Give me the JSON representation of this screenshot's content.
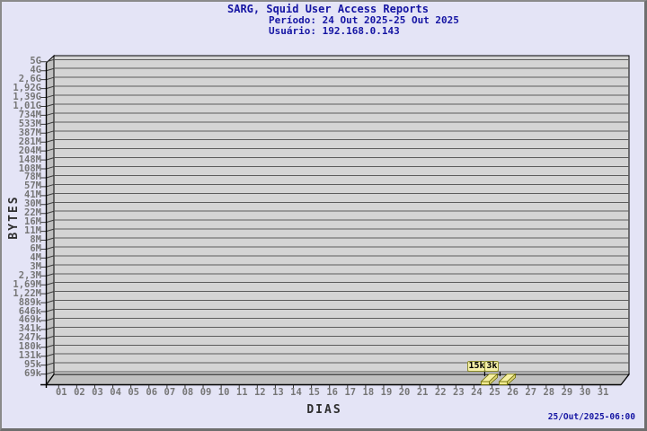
{
  "header": {
    "title": "SARG, Squid User Access Reports",
    "period": "Período: 24 Out 2025-25 Out 2025",
    "user": "Usuário: 192.168.0.143"
  },
  "footer": {
    "timestamp": "25/Out/2025-06:00"
  },
  "chart_data": {
    "type": "bar",
    "title": "SARG, Squid User Access Reports",
    "subtitle": "Período: 24 Out 2025-25 Out 2025",
    "user_line": "Usuário: 192.168.0.143",
    "xlabel": "DIAS",
    "ylabel": "BYTES",
    "y_scale": "log",
    "y_tick_labels": [
      "5G",
      "4G",
      "2,6G",
      "1,92G",
      "1,39G",
      "1,01G",
      "734M",
      "533M",
      "387M",
      "281M",
      "204M",
      "148M",
      "108M",
      "78M",
      "57M",
      "41M",
      "30M",
      "22M",
      "16M",
      "11M",
      "8M",
      "6M",
      "4M",
      "3M",
      "2,3M",
      "1,69M",
      "1,22M",
      "889k",
      "646k",
      "469k",
      "341k",
      "247k",
      "180k",
      "131k",
      "95k",
      "69k"
    ],
    "y_axis_min_label": "69k",
    "y_axis_max_label": "5G",
    "categories": [
      "01",
      "02",
      "03",
      "04",
      "05",
      "06",
      "07",
      "08",
      "09",
      "10",
      "11",
      "12",
      "13",
      "14",
      "15",
      "16",
      "17",
      "18",
      "19",
      "20",
      "21",
      "22",
      "23",
      "24",
      "25",
      "26",
      "27",
      "28",
      "29",
      "30",
      "31"
    ],
    "values": [
      0,
      0,
      0,
      0,
      0,
      0,
      0,
      0,
      0,
      0,
      0,
      0,
      0,
      0,
      0,
      0,
      0,
      0,
      0,
      0,
      0,
      0,
      0,
      15000,
      3000,
      0,
      0,
      0,
      0,
      0,
      0
    ],
    "bar_labels": [
      {
        "category": "24",
        "text": "15k"
      },
      {
        "category": "25",
        "text": "3k"
      }
    ],
    "grid": "horizontal",
    "legend": "none",
    "style": "3d-bar"
  },
  "colors": {
    "background": "#e4e4f6",
    "title_text": "#1515a3",
    "axis_title_text": "#2e2e2e",
    "tick_text": "#767676",
    "plot_face": "#d4d4d4",
    "plot_side": "#bfbfbf",
    "grid_line": "#5c5c5c",
    "frame_line": "#000000",
    "bar_fill": "#f0e88e",
    "bar_fill_top": "#f6f0a2",
    "bar_fill_side": "#dcd375",
    "bar_border": "#6b6b00",
    "value_box_fill": "#f7f1a9",
    "value_box_border": "#8f8f2f",
    "value_box_text": "#000000"
  }
}
